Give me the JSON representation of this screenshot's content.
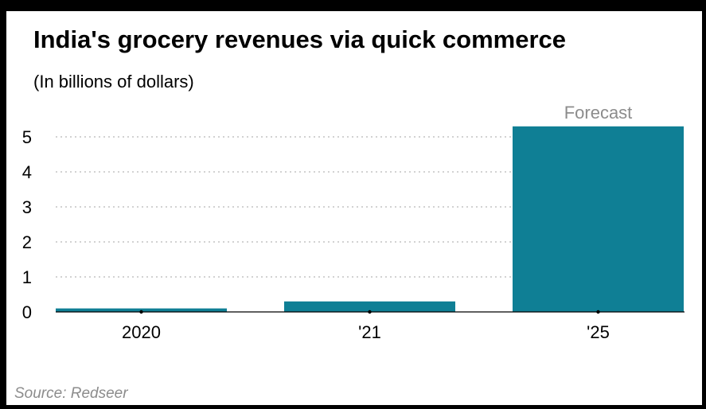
{
  "colors": {
    "bar": "#0f7f95",
    "axis": "#000000",
    "grid": "#b8b8b8",
    "muted_text": "#8c8c8c"
  },
  "chart_data": {
    "type": "bar",
    "title": "India's grocery revenues via quick commerce",
    "subtitle": "(In billions of dollars)",
    "categories": [
      "2020",
      "'21",
      "'25"
    ],
    "values": [
      0.1,
      0.3,
      5.3
    ],
    "ylim": [
      0,
      5.5
    ],
    "yticks": [
      0,
      1,
      2,
      3,
      4,
      5
    ],
    "grid": "horizontal dotted",
    "annotations": [
      {
        "category": "'25",
        "text": "Forecast"
      }
    ],
    "source": "Source: Redseer"
  }
}
